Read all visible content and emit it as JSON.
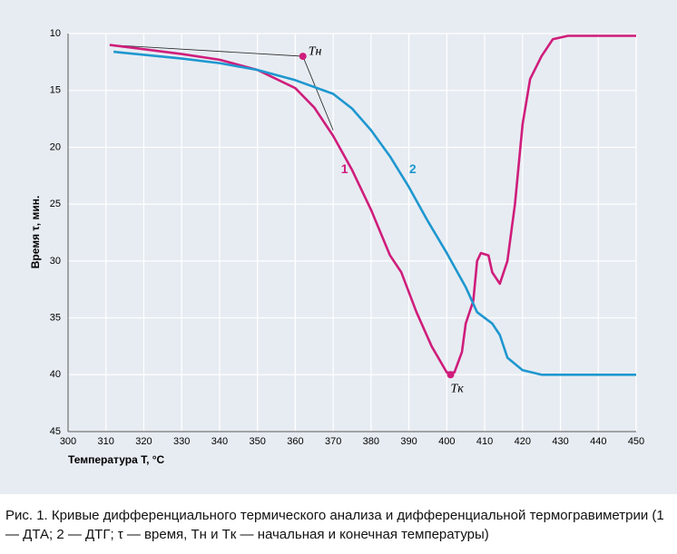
{
  "chart_data": {
    "type": "line",
    "ylabel": "Время τ, мин.",
    "xlabel": "Температура T, °C",
    "caption": "Рис. 1. Кривые дифференциального термического анализа и дифференциальной термогравиметрии (1 — ДТА; 2 — ДТГ; τ — время, Tн и Tк — начальная и конечная температуры)",
    "xlim": [
      300,
      450
    ],
    "xticks": [
      300,
      310,
      320,
      330,
      340,
      350,
      360,
      370,
      380,
      390,
      400,
      410,
      420,
      430,
      440,
      450
    ],
    "ylim": [
      10,
      45
    ],
    "yticks": [
      10,
      15,
      20,
      25,
      30,
      35,
      40,
      45
    ],
    "y_inverted": true,
    "grid": true,
    "series": [
      {
        "name": "1",
        "color": "#cf1d7b",
        "x": [
          311,
          330,
          340,
          350,
          360,
          365,
          370,
          375,
          380,
          385,
          388,
          392,
          396,
          400,
          402,
          404,
          405,
          407,
          408,
          409,
          411,
          412,
          414,
          416,
          418,
          420,
          422,
          425,
          428,
          432,
          450
        ],
        "values": [
          11,
          11.8,
          12.3,
          13.2,
          14.8,
          16.5,
          19,
          22,
          25.5,
          29.5,
          31,
          34.5,
          37.5,
          39.8,
          39.8,
          38,
          35.5,
          33.5,
          30,
          29.3,
          29.5,
          31,
          32,
          30,
          25,
          18,
          14,
          12,
          10.5,
          10.2,
          10.2
        ]
      },
      {
        "name": "2",
        "color": "#1e97cf",
        "x": [
          312,
          330,
          340,
          350,
          360,
          370,
          375,
          380,
          385,
          390,
          395,
          400,
          405,
          408,
          412,
          414,
          416,
          420,
          425,
          450
        ],
        "values": [
          11.6,
          12.2,
          12.6,
          13.2,
          14.1,
          15.3,
          16.6,
          18.5,
          20.8,
          23.5,
          26.5,
          29.3,
          32.3,
          34.5,
          35.5,
          36.5,
          38.5,
          39.6,
          40,
          40
        ]
      }
    ],
    "series_labels": [
      {
        "text": "1",
        "x": 373,
        "y": 22
      },
      {
        "text": "2",
        "x": 391,
        "y": 22
      }
    ],
    "points": [
      {
        "text": "Tн",
        "x": 362,
        "y": 12
      },
      {
        "text": "Tк",
        "x": 401,
        "y": 40
      }
    ],
    "tangents": [
      {
        "x": [
          311,
          362
        ],
        "y": [
          11,
          12
        ]
      },
      {
        "x": [
          362,
          370
        ],
        "y": [
          12,
          18.5
        ]
      }
    ]
  }
}
